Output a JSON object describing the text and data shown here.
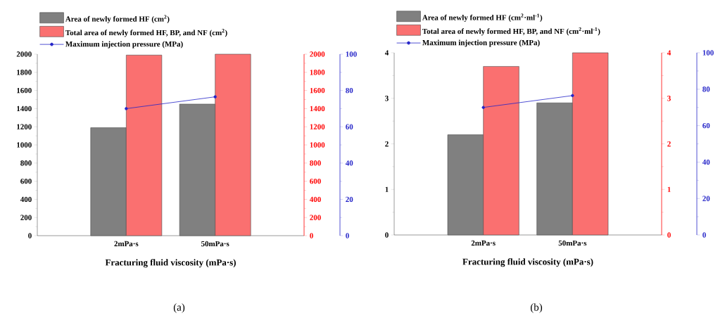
{
  "chart_data": [
    {
      "type": "bar",
      "xlabel": "Fracturing fluid viscosity (mPa·s)",
      "categories": [
        "2mPa·s",
        "50mPa·s"
      ],
      "series": [
        {
          "name": "Area of newly formed HF (cm$^{2}$)",
          "color": "#808080",
          "values": [
            1190,
            1450
          ]
        },
        {
          "name": "Total area of newly formed HF, BP, and NF (cm$^{2}$)",
          "color": "#fa7070",
          "values": [
            1990,
            2000
          ],
          "axis": "y2"
        },
        {
          "name": "Maximum injection pressure (MPa)",
          "color": "#2424c8",
          "values": [
            70,
            76.5
          ],
          "axis": "y3",
          "type": "line",
          "marker": "circle"
        }
      ],
      "ylim": [
        0,
        2000
      ],
      "yticks": [
        0,
        200,
        400,
        600,
        800,
        1000,
        1200,
        1400,
        1600,
        1800,
        2000
      ],
      "y2lim": [
        0,
        2000
      ],
      "y2ticks": [
        0,
        200,
        400,
        600,
        800,
        1000,
        1200,
        1400,
        1600,
        1800,
        2000
      ],
      "y3lim": [
        0,
        100
      ],
      "y3ticks": [
        0,
        20,
        40,
        60,
        80,
        100
      ],
      "legend": "top left",
      "annotations": [
        "(a)"
      ]
    },
    {
      "type": "bar",
      "xlabel": "Fracturing fluid viscosity (mPa·s)",
      "categories": [
        "2mPa·s",
        "50mPa·s"
      ],
      "series": [
        {
          "name": "Area of newly formed HF (cm$^{2}$·ml$^{-1}$)",
          "color": "#808080",
          "values": [
            2.2,
            2.9
          ]
        },
        {
          "name": "Total area of newly formed HF, BP, and NF (cm$^{2}$·ml$^{-1}$)",
          "color": "#fa7070",
          "values": [
            3.7,
            4.0
          ],
          "axis": "y2"
        },
        {
          "name": "Maximum injection pressure (MPa)",
          "color": "#2424c8",
          "values": [
            70,
            76.5
          ],
          "axis": "y3",
          "type": "line",
          "marker": "circle"
        }
      ],
      "ylim": [
        0,
        4
      ],
      "yticks": [
        0,
        1,
        2,
        3,
        4
      ],
      "y2lim": [
        0,
        4
      ],
      "y2ticks": [
        0,
        1,
        2,
        3,
        4
      ],
      "y3lim": [
        0,
        100
      ],
      "y3ticks": [
        0,
        20,
        40,
        60,
        80,
        100
      ],
      "legend": "top left",
      "annotations": [
        "(b)"
      ]
    }
  ]
}
